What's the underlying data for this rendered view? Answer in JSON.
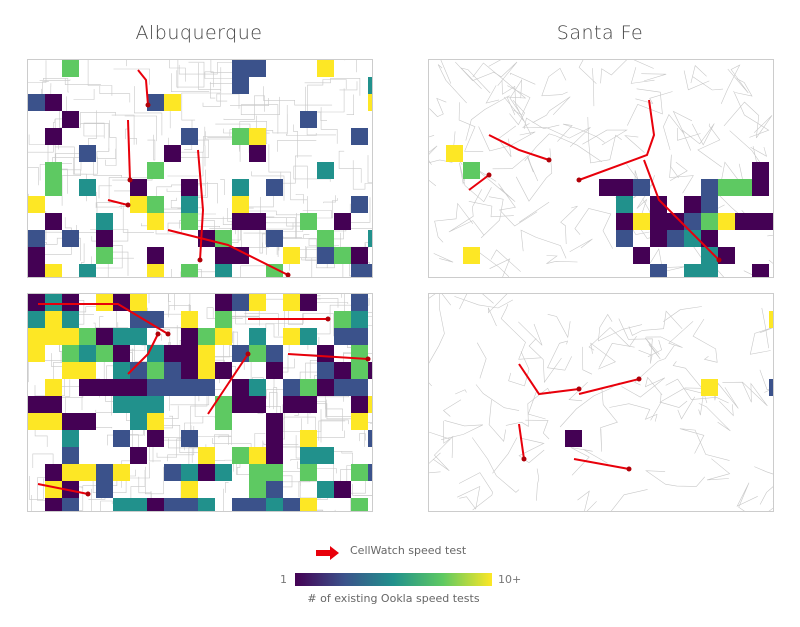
{
  "titles": {
    "left": "Albuquerque",
    "right": "Santa Fe"
  },
  "legend": {
    "track_label": "CellWatch speed test",
    "track_color": "#e8000b",
    "colorbar_min": "1",
    "colorbar_max": "10+",
    "colorbar_label": "# of existing Ookla speed tests",
    "colormap": [
      "#440154",
      "#3b528b",
      "#21918c",
      "#5ec962",
      "#fde725"
    ]
  },
  "panels": [
    {
      "city": "Albuquerque",
      "row": "top"
    },
    {
      "city": "Santa Fe",
      "row": "top"
    },
    {
      "city": "Albuquerque",
      "row": "bottom"
    },
    {
      "city": "Santa Fe",
      "row": "bottom"
    }
  ]
}
